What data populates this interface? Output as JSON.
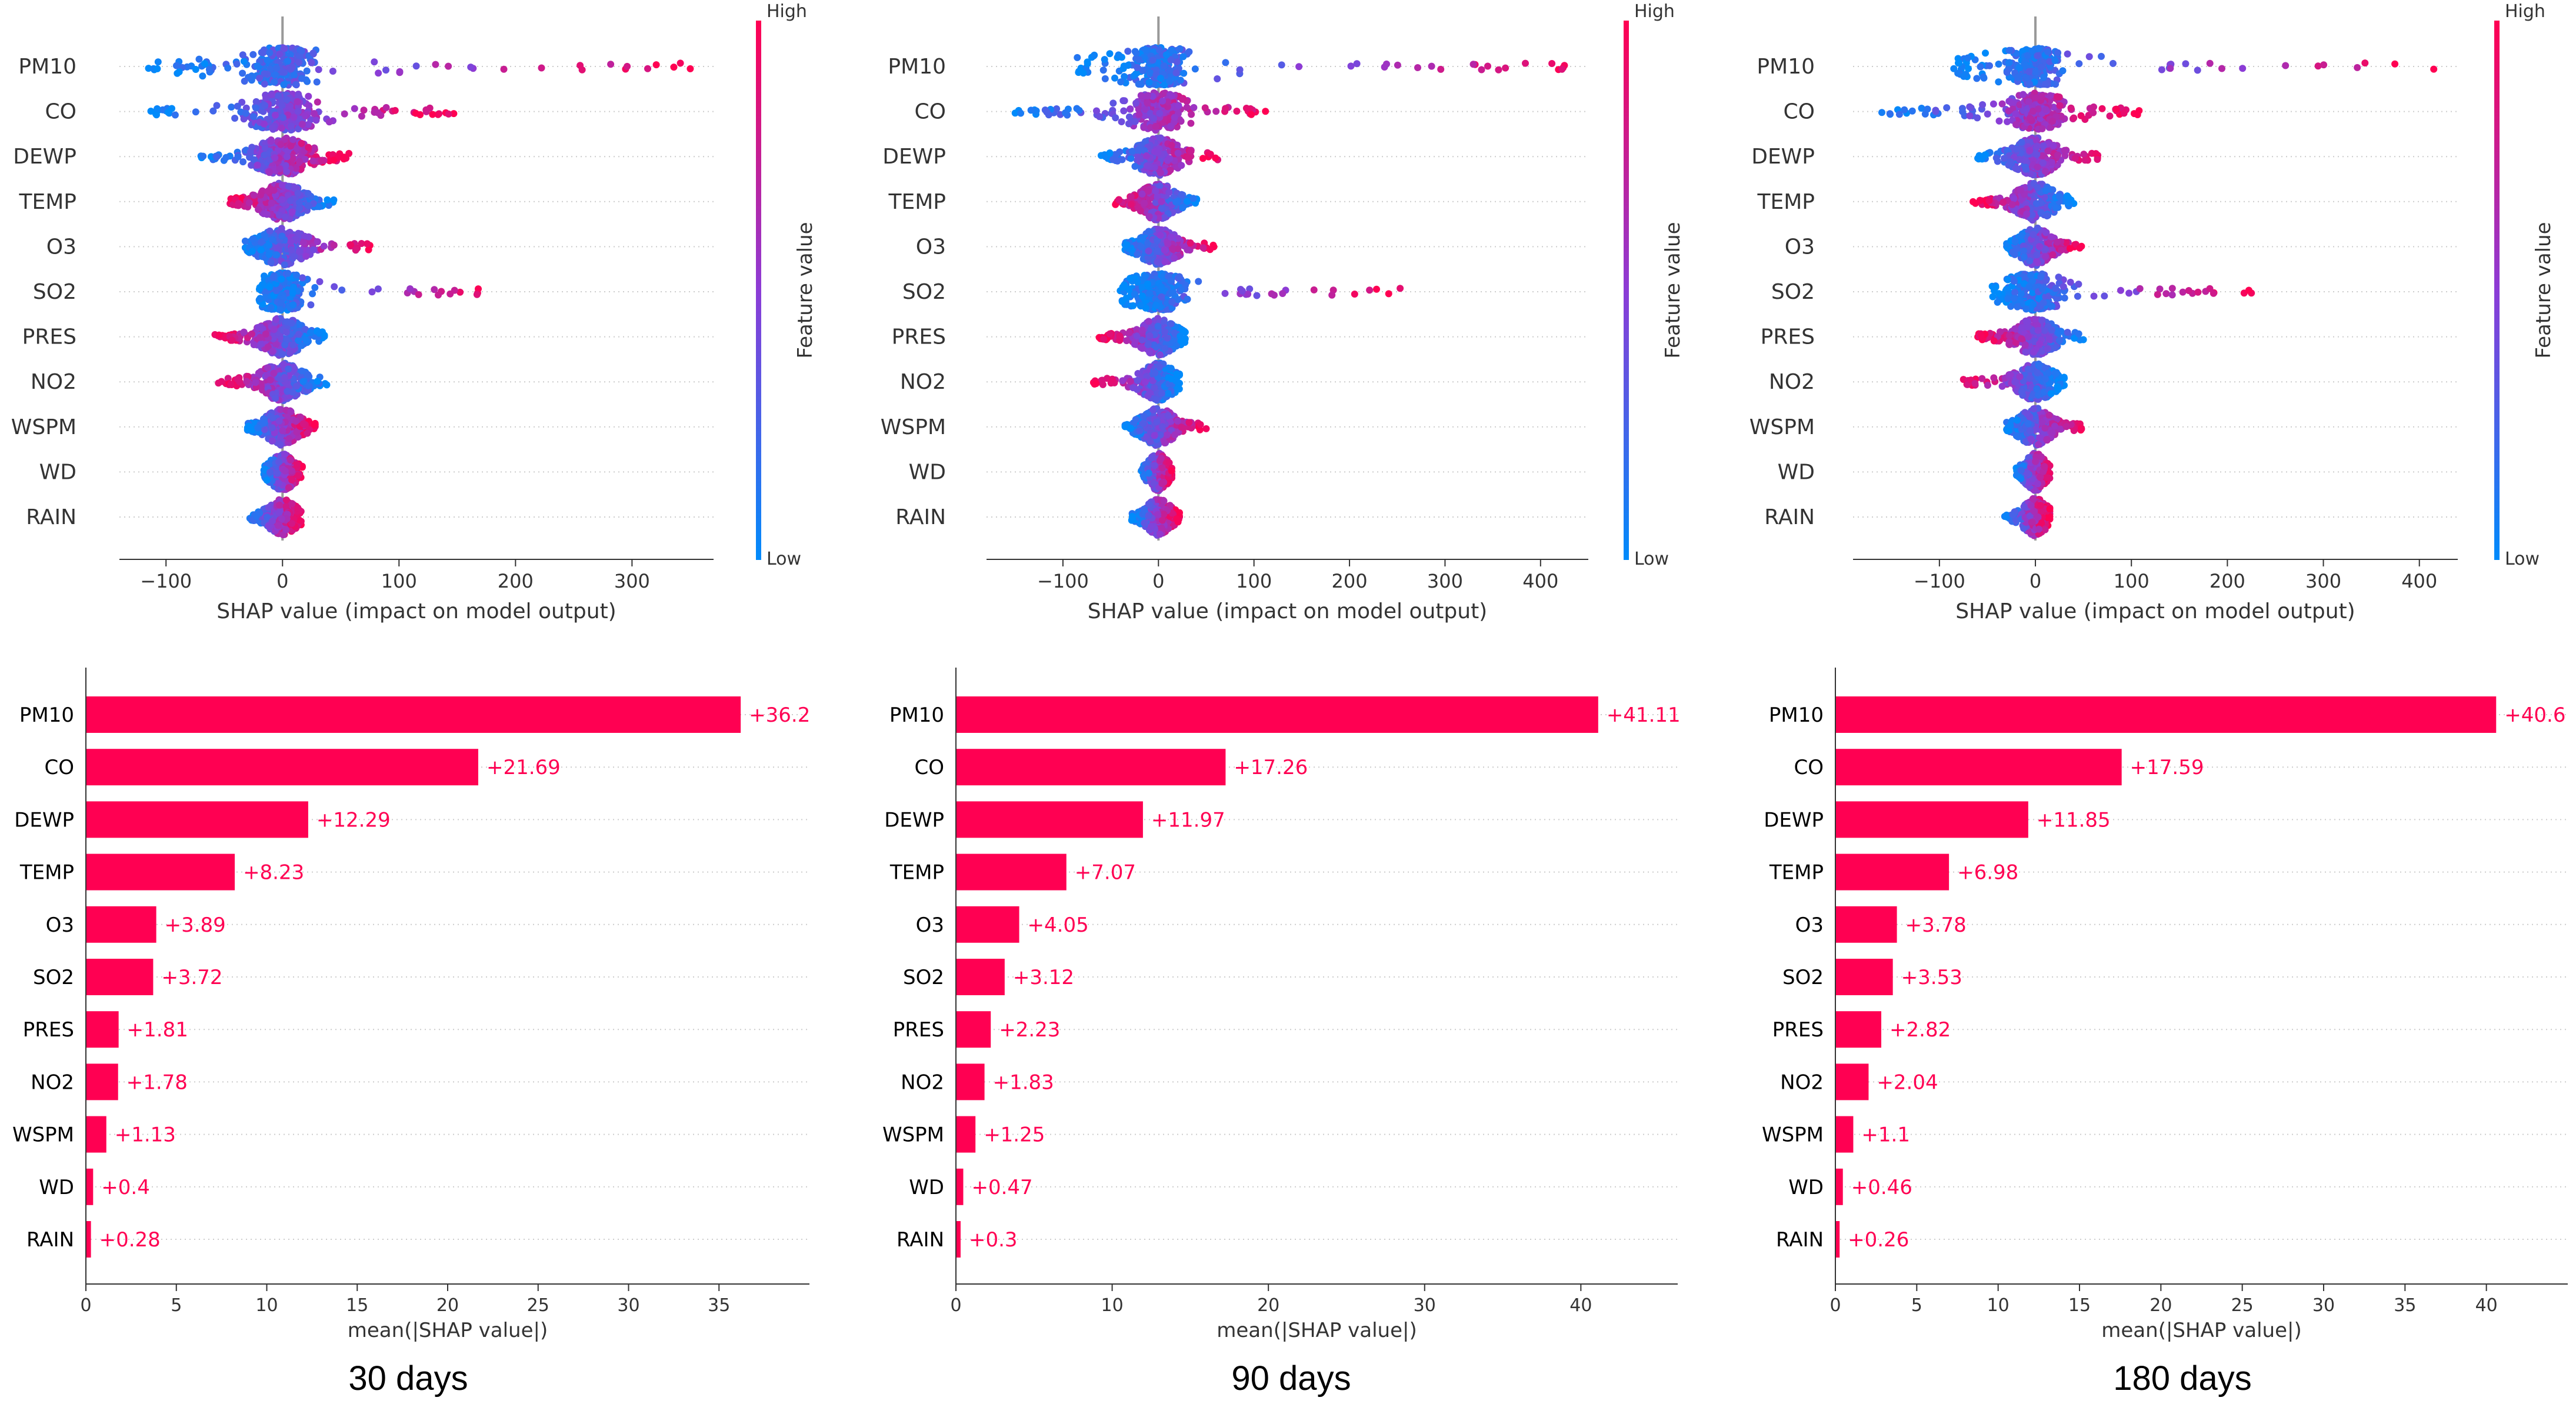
{
  "figure": {
    "panels": [
      {
        "caption": "30 days"
      },
      {
        "caption": "90 days"
      },
      {
        "caption": "180 days"
      }
    ]
  },
  "colors": {
    "high": "#ff0052",
    "low": "#008bfb",
    "mid": "#8c3cd6",
    "axis": "#333333",
    "grid": "#cccccc",
    "zero_line": "#999999"
  },
  "chart_data": [
    {
      "type": "scatter",
      "subtype": "shap-beeswarm",
      "panel": "30 days",
      "features": [
        "PM10",
        "CO",
        "DEWP",
        "TEMP",
        "O3",
        "SO2",
        "PRES",
        "NO2",
        "WSPM",
        "WD",
        "RAIN"
      ],
      "xlabel": "SHAP value (impact on model output)",
      "xlim": [
        -140,
        370
      ],
      "xticks": [
        -100,
        0,
        100,
        200,
        300
      ],
      "colorbar": {
        "label": "Feature value",
        "high": "High",
        "low": "Low"
      },
      "spread": [
        {
          "feature": "PM10",
          "min": -115,
          "max": 350
        },
        {
          "feature": "CO",
          "min": -113,
          "max": 147
        },
        {
          "feature": "DEWP",
          "min": -70,
          "max": 57
        },
        {
          "feature": "TEMP",
          "min": -45,
          "max": 44
        },
        {
          "feature": "O3",
          "min": -32,
          "max": 75
        },
        {
          "feature": "SO2",
          "min": -20,
          "max": 168
        },
        {
          "feature": "PRES",
          "min": -58,
          "max": 36
        },
        {
          "feature": "NO2",
          "min": -55,
          "max": 38
        },
        {
          "feature": "WSPM",
          "min": -30,
          "max": 28
        },
        {
          "feature": "WD",
          "min": -16,
          "max": 17
        },
        {
          "feature": "RAIN",
          "min": -28,
          "max": 16
        }
      ]
    },
    {
      "type": "scatter",
      "subtype": "shap-beeswarm",
      "panel": "90 days",
      "features": [
        "PM10",
        "CO",
        "DEWP",
        "TEMP",
        "O3",
        "SO2",
        "PRES",
        "NO2",
        "WSPM",
        "WD",
        "RAIN"
      ],
      "xlabel": "SHAP value (impact on model output)",
      "xlim": [
        -180,
        450
      ],
      "xticks": [
        -100,
        0,
        100,
        200,
        300,
        400
      ],
      "colorbar": {
        "label": "Feature value",
        "high": "High",
        "low": "Low"
      },
      "spread": [
        {
          "feature": "PM10",
          "min": -85,
          "max": 425
        },
        {
          "feature": "CO",
          "min": -150,
          "max": 112
        },
        {
          "feature": "DEWP",
          "min": -60,
          "max": 62
        },
        {
          "feature": "TEMP",
          "min": -45,
          "max": 40
        },
        {
          "feature": "O3",
          "min": -35,
          "max": 58
        },
        {
          "feature": "SO2",
          "min": -40,
          "max": 253
        },
        {
          "feature": "PRES",
          "min": -62,
          "max": 28
        },
        {
          "feature": "NO2",
          "min": -68,
          "max": 22
        },
        {
          "feature": "WSPM",
          "min": -35,
          "max": 50
        },
        {
          "feature": "WD",
          "min": -18,
          "max": 14
        },
        {
          "feature": "RAIN",
          "min": -28,
          "max": 22
        }
      ]
    },
    {
      "type": "scatter",
      "subtype": "shap-beeswarm",
      "panel": "180 days",
      "features": [
        "PM10",
        "CO",
        "DEWP",
        "TEMP",
        "O3",
        "SO2",
        "PRES",
        "NO2",
        "WSPM",
        "WD",
        "RAIN"
      ],
      "xlabel": "SHAP value (impact on model output)",
      "xlim": [
        -190,
        440
      ],
      "xticks": [
        -100,
        0,
        100,
        200,
        300,
        400
      ],
      "colorbar": {
        "label": "Feature value",
        "high": "High",
        "low": "Low"
      },
      "spread": [
        {
          "feature": "PM10",
          "min": -85,
          "max": 415
        },
        {
          "feature": "CO",
          "min": -160,
          "max": 108
        },
        {
          "feature": "DEWP",
          "min": -60,
          "max": 65
        },
        {
          "feature": "TEMP",
          "min": -65,
          "max": 40
        },
        {
          "feature": "O3",
          "min": -30,
          "max": 48
        },
        {
          "feature": "SO2",
          "min": -45,
          "max": 225
        },
        {
          "feature": "PRES",
          "min": -60,
          "max": 50
        },
        {
          "feature": "NO2",
          "min": -75,
          "max": 30
        },
        {
          "feature": "WSPM",
          "min": -30,
          "max": 48
        },
        {
          "feature": "WD",
          "min": -20,
          "max": 15
        },
        {
          "feature": "RAIN",
          "min": -32,
          "max": 15
        }
      ]
    },
    {
      "type": "bar",
      "orientation": "horizontal",
      "panel": "30 days",
      "categories": [
        "PM10",
        "CO",
        "DEWP",
        "TEMP",
        "O3",
        "SO2",
        "PRES",
        "NO2",
        "WSPM",
        "WD",
        "RAIN"
      ],
      "values": [
        36.2,
        21.69,
        12.29,
        8.23,
        3.89,
        3.72,
        1.81,
        1.78,
        1.13,
        0.4,
        0.28
      ],
      "value_labels": [
        "+36.2",
        "+21.69",
        "+12.29",
        "+8.23",
        "+3.89",
        "+3.72",
        "+1.81",
        "+1.78",
        "+1.13",
        "+0.4",
        "+0.28"
      ],
      "xlabel": "mean(|SHAP value|)",
      "xlim": [
        0,
        40
      ],
      "xticks": [
        0,
        5,
        10,
        15,
        20,
        25,
        30,
        35
      ]
    },
    {
      "type": "bar",
      "orientation": "horizontal",
      "panel": "90 days",
      "categories": [
        "PM10",
        "CO",
        "DEWP",
        "TEMP",
        "O3",
        "SO2",
        "PRES",
        "NO2",
        "WSPM",
        "WD",
        "RAIN"
      ],
      "values": [
        41.11,
        17.26,
        11.97,
        7.07,
        4.05,
        3.12,
        2.23,
        1.83,
        1.25,
        0.47,
        0.3
      ],
      "value_labels": [
        "+41.11",
        "+17.26",
        "+11.97",
        "+7.07",
        "+4.05",
        "+3.12",
        "+2.23",
        "+1.83",
        "+1.25",
        "+0.47",
        "+0.3"
      ],
      "xlabel": "mean(|SHAP value|)",
      "xlim": [
        0,
        46.2
      ],
      "xticks": [
        0,
        10,
        20,
        30,
        40
      ]
    },
    {
      "type": "bar",
      "orientation": "horizontal",
      "panel": "180 days",
      "categories": [
        "PM10",
        "CO",
        "DEWP",
        "TEMP",
        "O3",
        "SO2",
        "PRES",
        "NO2",
        "WSPM",
        "WD",
        "RAIN"
      ],
      "values": [
        40.6,
        17.59,
        11.85,
        6.98,
        3.78,
        3.53,
        2.82,
        2.04,
        1.1,
        0.46,
        0.26
      ],
      "value_labels": [
        "+40.6",
        "+17.59",
        "+11.85",
        "+6.98",
        "+3.78",
        "+3.53",
        "+2.82",
        "+2.04",
        "+1.1",
        "+0.46",
        "+0.26"
      ],
      "xlabel": "mean(|SHAP value|)",
      "xlim": [
        0,
        45
      ],
      "xticks": [
        0,
        5,
        10,
        15,
        20,
        25,
        30,
        35,
        40
      ]
    }
  ]
}
